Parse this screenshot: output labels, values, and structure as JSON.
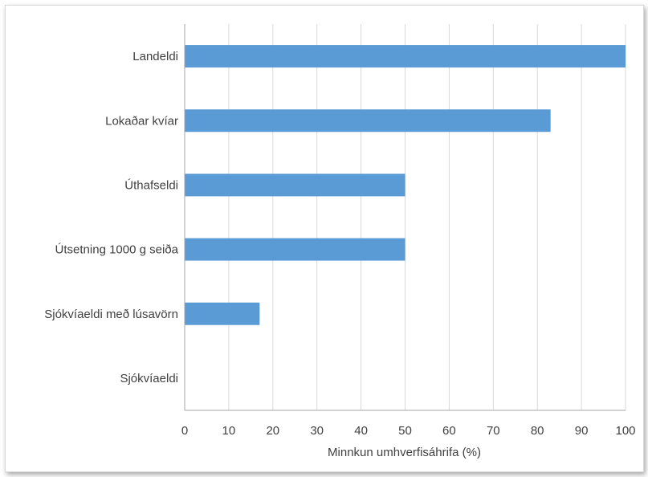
{
  "chart_data": {
    "type": "bar",
    "orientation": "horizontal",
    "title": "",
    "xlabel": "Minnkun umhverfisáhrifa (%)",
    "ylabel": "",
    "categories": [
      "Landeldi",
      "Lokaðar kvíar",
      "Úthafseldi",
      "Útsetning 1000 g seiða",
      "Sjókvíaeldi með lúsavörn",
      "Sjókvíaeldi"
    ],
    "values": [
      100,
      83,
      50,
      50,
      17,
      0
    ],
    "xlim": [
      0,
      100
    ],
    "xticks": [
      "0",
      "10",
      "20",
      "30",
      "40",
      "50",
      "60",
      "70",
      "80",
      "90",
      "100"
    ],
    "grid": true,
    "legend": false,
    "bar_color": "#5b9bd5",
    "grid_color": "#d9d9d9"
  }
}
